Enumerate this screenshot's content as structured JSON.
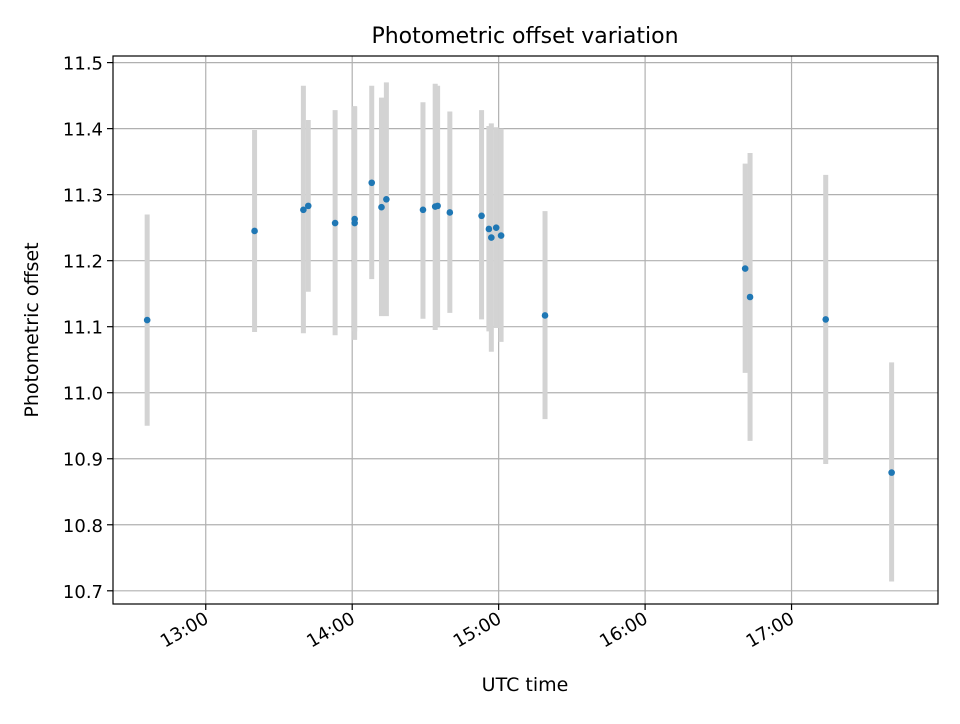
{
  "chart_data": {
    "type": "scatter",
    "title": "Photometric offset variation",
    "xlabel": "UTC time",
    "ylabel": "Photometric offset",
    "x_tick_labels": [
      "13:00",
      "14:00",
      "15:00",
      "16:00",
      "17:00"
    ],
    "x_tick_values": [
      "13:00",
      "14:00",
      "15:00",
      "16:00",
      "17:00"
    ],
    "y_tick_labels": [
      "10.7",
      "10.8",
      "10.9",
      "11.0",
      "11.1",
      "11.2",
      "11.3",
      "11.4",
      "11.5"
    ],
    "xlim": [
      "12:22",
      "18:00"
    ],
    "ylim": [
      10.68,
      11.51
    ],
    "grid": true,
    "point_color": "#1f77b4",
    "errorbar_color": "#d3d3d3",
    "series": [
      {
        "points": [
          {
            "x": "12:36",
            "y": 11.11,
            "ylo": 10.95,
            "yhi": 11.27
          },
          {
            "x": "13:20",
            "y": 11.245,
            "ylo": 11.092,
            "yhi": 11.398
          },
          {
            "x": "13:40",
            "y": 11.277,
            "ylo": 11.09,
            "yhi": 11.465
          },
          {
            "x": "13:42",
            "y": 11.283,
            "ylo": 11.153,
            "yhi": 11.413
          },
          {
            "x": "13:53",
            "y": 11.257,
            "ylo": 11.087,
            "yhi": 11.428
          },
          {
            "x": "14:01",
            "y": 11.263,
            "ylo": 11.093,
            "yhi": 11.433
          },
          {
            "x": "14:01",
            "y": 11.257,
            "ylo": 11.08,
            "yhi": 11.434
          },
          {
            "x": "14:08",
            "y": 11.318,
            "ylo": 11.172,
            "yhi": 11.465
          },
          {
            "x": "14:12",
            "y": 11.281,
            "ylo": 11.116,
            "yhi": 11.447
          },
          {
            "x": "14:14",
            "y": 11.293,
            "ylo": 11.116,
            "yhi": 11.47
          },
          {
            "x": "14:29",
            "y": 11.277,
            "ylo": 11.112,
            "yhi": 11.44
          },
          {
            "x": "14:34",
            "y": 11.282,
            "ylo": 11.095,
            "yhi": 11.468
          },
          {
            "x": "14:35",
            "y": 11.283,
            "ylo": 11.1,
            "yhi": 11.465
          },
          {
            "x": "14:40",
            "y": 11.273,
            "ylo": 11.121,
            "yhi": 11.426
          },
          {
            "x": "14:53",
            "y": 11.268,
            "ylo": 11.111,
            "yhi": 11.428
          },
          {
            "x": "14:56",
            "y": 11.248,
            "ylo": 11.093,
            "yhi": 11.404
          },
          {
            "x": "14:57",
            "y": 11.235,
            "ylo": 11.062,
            "yhi": 11.408
          },
          {
            "x": "14:59",
            "y": 11.25,
            "ylo": 11.098,
            "yhi": 11.402
          },
          {
            "x": "15:01",
            "y": 11.238,
            "ylo": 11.077,
            "yhi": 11.4
          },
          {
            "x": "15:19",
            "y": 11.117,
            "ylo": 10.96,
            "yhi": 11.275
          },
          {
            "x": "16:41",
            "y": 11.188,
            "ylo": 11.03,
            "yhi": 11.347
          },
          {
            "x": "16:43",
            "y": 11.145,
            "ylo": 10.927,
            "yhi": 11.363
          },
          {
            "x": "17:14",
            "y": 11.111,
            "ylo": 10.892,
            "yhi": 11.33
          },
          {
            "x": "17:41",
            "y": 10.879,
            "ylo": 10.714,
            "yhi": 11.046
          }
        ]
      }
    ]
  }
}
